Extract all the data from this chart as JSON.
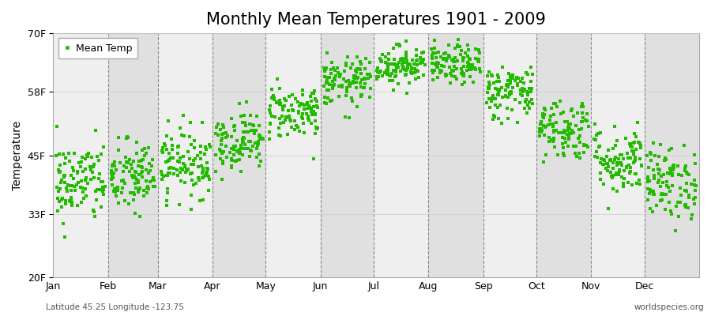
{
  "title": "Monthly Mean Temperatures 1901 - 2009",
  "ylabel": "Temperature",
  "legend_label": "Mean Temp",
  "bottom_left_text": "Latitude 45.25 Longitude -123.75",
  "bottom_right_text": "worldspecies.org",
  "dot_color": "#22bb00",
  "background_color_light": "#efefef",
  "background_color_dark": "#e0e0e0",
  "figure_bg": "#ffffff",
  "ylim": [
    20,
    70
  ],
  "yticks": [
    20,
    33,
    45,
    58,
    70
  ],
  "ytick_labels": [
    "20F",
    "33F",
    "45F",
    "58F",
    "70F"
  ],
  "months": [
    "Jan",
    "Feb",
    "Mar",
    "Apr",
    "May",
    "Jun",
    "Jul",
    "Aug",
    "Sep",
    "Oct",
    "Nov",
    "Dec"
  ],
  "month_days": [
    31,
    28,
    31,
    30,
    31,
    30,
    31,
    31,
    30,
    31,
    30,
    31
  ],
  "month_means": [
    39.5,
    40.5,
    43.5,
    48.0,
    54.0,
    60.0,
    63.5,
    63.5,
    58.0,
    50.5,
    44.0,
    39.5
  ],
  "month_stds": [
    4.2,
    3.8,
    3.5,
    3.0,
    2.8,
    2.5,
    2.0,
    2.0,
    2.8,
    3.2,
    3.5,
    3.8
  ],
  "n_years": 109,
  "title_fontsize": 15,
  "axis_fontsize": 10,
  "tick_fontsize": 9,
  "marker_size": 3,
  "seed": 42
}
